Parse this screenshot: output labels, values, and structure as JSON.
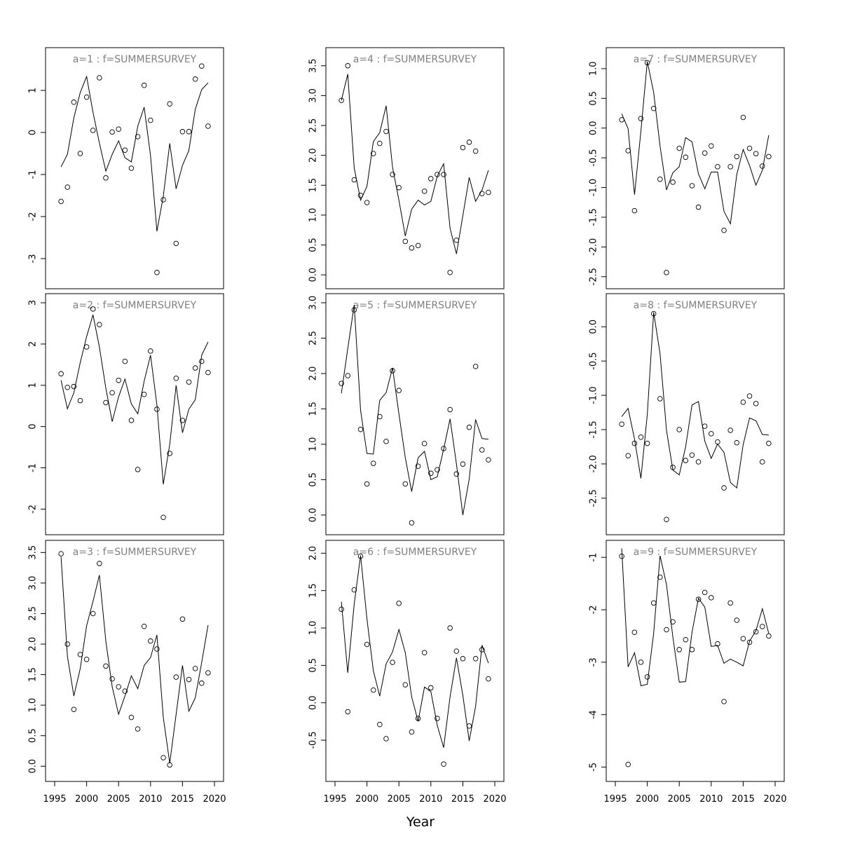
{
  "chart_data": {
    "xlabel": "Year",
    "years": [
      1996,
      1997,
      1998,
      1999,
      2000,
      2001,
      2002,
      2003,
      2004,
      2005,
      2006,
      2007,
      2008,
      2009,
      2010,
      2011,
      2012,
      2013,
      2014,
      2015,
      2016,
      2017,
      2018,
      2019
    ],
    "xlim": [
      1995,
      2020
    ],
    "xticks": [
      1995,
      2000,
      2005,
      2010,
      2015,
      2020
    ],
    "panels": [
      {
        "type": "scatter+line",
        "title": "a=1  :  f=SUMMERSURVEY",
        "ylim": [
          -3.5,
          1.8
        ],
        "yticks": [
          -3,
          -2,
          -1,
          0,
          1
        ],
        "observed": [
          -1.64,
          -1.3,
          0.72,
          -0.5,
          0.84,
          0.05,
          1.3,
          -1.08,
          0.01,
          0.08,
          -0.42,
          -0.85,
          -0.1,
          1.12,
          0.29,
          -3.33,
          -1.6,
          0.68,
          -2.64,
          0.02,
          0.02,
          1.27,
          1.58,
          0.15
        ],
        "fitted": [
          -0.82,
          -0.52,
          0.35,
          0.95,
          1.33,
          0.48,
          -0.25,
          -0.92,
          -0.52,
          -0.2,
          -0.6,
          -0.7,
          0.15,
          0.6,
          -0.55,
          -2.35,
          -1.52,
          -0.26,
          -1.34,
          -0.78,
          -0.43,
          0.55,
          1.02,
          1.18
        ]
      },
      {
        "type": "scatter+line",
        "title": "a=2  :  f=SUMMERSURVEY",
        "ylim": [
          -2.4,
          3.0
        ],
        "yticks": [
          -2,
          -1,
          0,
          1,
          2,
          3
        ],
        "observed": [
          1.28,
          0.95,
          0.97,
          0.63,
          1.93,
          2.85,
          2.47,
          0.58,
          0.82,
          1.12,
          1.58,
          0.15,
          -1.04,
          0.78,
          1.83,
          0.42,
          -2.2,
          -0.65,
          1.17,
          0.15,
          1.08,
          1.42,
          1.58,
          1.31
        ],
        "fitted": [
          1.12,
          0.43,
          0.82,
          1.55,
          2.18,
          2.71,
          1.93,
          0.93,
          0.12,
          0.72,
          1.15,
          0.55,
          0.31,
          1.1,
          1.73,
          0.52,
          -1.4,
          -0.43,
          1.0,
          -0.15,
          0.42,
          0.65,
          1.73,
          2.05
        ]
      },
      {
        "type": "scatter+line",
        "title": "a=3  :  f=SUMMERSURVEY",
        "ylim": [
          -0.1,
          3.55
        ],
        "yticks": [
          0.0,
          0.5,
          1.0,
          1.5,
          2.0,
          2.5,
          3.0,
          3.5
        ],
        "observed": [
          3.48,
          2.0,
          0.93,
          1.83,
          1.75,
          2.5,
          3.32,
          1.64,
          1.43,
          1.3,
          1.23,
          0.8,
          0.61,
          2.29,
          2.05,
          1.92,
          0.14,
          0.02,
          1.46,
          2.41,
          1.42,
          1.6,
          1.36,
          1.53
        ],
        "fitted": [
          3.43,
          1.8,
          1.15,
          1.6,
          2.3,
          2.7,
          3.13,
          2.05,
          1.3,
          0.85,
          1.15,
          1.48,
          1.27,
          1.65,
          1.78,
          2.15,
          0.8,
          0.05,
          0.85,
          1.65,
          0.9,
          1.12,
          1.7,
          2.31
        ]
      },
      {
        "type": "scatter+line",
        "title": "a=4  :  f=SUMMERSURVEY",
        "ylim": [
          -0.08,
          3.65
        ],
        "yticks": [
          0.0,
          0.5,
          1.0,
          1.5,
          2.0,
          2.5,
          3.0,
          3.5
        ],
        "observed": [
          2.92,
          3.5,
          1.59,
          1.33,
          1.21,
          2.03,
          2.2,
          2.4,
          1.68,
          1.46,
          0.56,
          0.45,
          0.49,
          1.4,
          1.61,
          1.68,
          1.68,
          0.04,
          0.58,
          2.13,
          2.22,
          2.07,
          1.36,
          1.38
        ],
        "fitted": [
          2.92,
          3.36,
          1.79,
          1.25,
          1.48,
          2.23,
          2.38,
          2.83,
          1.8,
          1.25,
          0.65,
          1.1,
          1.25,
          1.17,
          1.23,
          1.65,
          1.86,
          0.78,
          0.35,
          0.99,
          1.63,
          1.23,
          1.42,
          1.75
        ]
      },
      {
        "type": "scatter+line",
        "title": "a=5  :  f=SUMMERSURVEY",
        "ylim": [
          -0.15,
          3.0
        ],
        "yticks": [
          0.0,
          0.5,
          1.0,
          1.5,
          2.0,
          2.5,
          3.0
        ],
        "observed": [
          1.86,
          1.97,
          2.9,
          1.21,
          0.44,
          0.73,
          1.39,
          1.04,
          2.04,
          1.76,
          0.44,
          -0.11,
          0.69,
          1.01,
          0.59,
          0.64,
          0.94,
          1.49,
          0.58,
          0.72,
          1.24,
          2.1,
          0.92,
          0.78
        ],
        "fitted": [
          1.72,
          2.35,
          2.97,
          1.48,
          0.87,
          0.86,
          1.62,
          1.73,
          2.08,
          1.43,
          0.81,
          0.33,
          0.81,
          0.9,
          0.5,
          0.54,
          0.93,
          1.36,
          0.72,
          0.0,
          0.51,
          1.35,
          1.08,
          1.07
        ]
      },
      {
        "type": "scatter+line",
        "title": "a=6  :  f=SUMMERSURVEY",
        "ylim": [
          -0.93,
          2.05
        ],
        "yticks": [
          -0.5,
          0.0,
          0.5,
          1.0,
          1.5,
          2.0
        ],
        "observed": [
          1.25,
          -0.12,
          1.51,
          1.96,
          0.78,
          0.17,
          -0.29,
          -0.48,
          0.54,
          1.33,
          0.24,
          -0.39,
          -0.21,
          0.67,
          0.2,
          -0.21,
          -0.82,
          1.0,
          0.69,
          0.59,
          -0.31,
          0.59,
          0.71,
          0.32
        ],
        "fitted": [
          1.35,
          0.4,
          1.32,
          1.97,
          1.12,
          0.43,
          0.09,
          0.52,
          0.68,
          0.98,
          0.67,
          0.08,
          -0.25,
          0.21,
          0.15,
          -0.3,
          -0.6,
          0.08,
          0.6,
          0.1,
          -0.51,
          -0.05,
          0.77,
          0.53
        ]
      },
      {
        "type": "scatter+line",
        "title": "a=7  :  f=SUMMERSURVEY",
        "ylim": [
          -2.55,
          1.2
        ],
        "yticks": [
          -2.5,
          -2.0,
          -1.5,
          -1.0,
          -0.5,
          0.0,
          0.5,
          1.0
        ],
        "observed": [
          0.14,
          -0.38,
          -1.39,
          0.16,
          1.1,
          0.33,
          -0.86,
          -2.43,
          -0.91,
          -0.34,
          -0.49,
          -0.97,
          -1.33,
          -0.42,
          -0.3,
          -0.65,
          -1.72,
          -0.65,
          -0.48,
          0.18,
          -0.34,
          -0.43,
          -0.64,
          -0.48
        ],
        "fitted": [
          0.24,
          -0.01,
          -1.12,
          -0.05,
          1.12,
          0.6,
          -0.3,
          -1.04,
          -0.75,
          -0.65,
          -0.16,
          -0.23,
          -0.77,
          -1.02,
          -0.74,
          -0.74,
          -1.4,
          -1.61,
          -0.78,
          -0.36,
          -0.63,
          -0.96,
          -0.71,
          -0.12
        ]
      },
      {
        "type": "scatter+line",
        "title": "a=8  :  f=SUMMERSURVEY",
        "ylim": [
          -2.9,
          0.35
        ],
        "yticks": [
          -2.5,
          -2.0,
          -1.5,
          -1.0,
          -0.5,
          0.0
        ],
        "observed": [
          -1.42,
          -1.88,
          -1.7,
          -1.61,
          -1.7,
          0.19,
          -1.05,
          -2.81,
          -2.05,
          -1.5,
          -1.95,
          -1.87,
          -1.97,
          -1.45,
          -1.56,
          -1.68,
          -2.35,
          -1.51,
          -1.69,
          -1.1,
          -1.01,
          -1.12,
          -1.97,
          -1.7
        ],
        "fitted": [
          -1.31,
          -1.19,
          -1.64,
          -2.21,
          -1.28,
          0.21,
          -0.39,
          -1.51,
          -2.09,
          -2.16,
          -1.75,
          -1.14,
          -1.09,
          -1.67,
          -1.92,
          -1.71,
          -1.83,
          -2.27,
          -2.35,
          -1.72,
          -1.33,
          -1.37,
          -1.57,
          -1.58
        ]
      },
      {
        "type": "scatter+line",
        "title": "a=9  :  f=SUMMERSURVEY",
        "ylim": [
          -5.1,
          -0.85
        ],
        "yticks": [
          -5,
          -4,
          -3,
          -2,
          -1
        ],
        "observed": [
          -0.98,
          -4.95,
          -2.43,
          -3.0,
          -3.28,
          -1.87,
          -1.38,
          -2.38,
          -2.23,
          -2.76,
          -2.57,
          -2.76,
          -1.8,
          -1.67,
          -1.77,
          -2.65,
          -3.75,
          -1.87,
          -2.2,
          -2.55,
          -2.62,
          -2.42,
          -2.32,
          -2.5
        ],
        "fitted": [
          -0.83,
          -3.09,
          -2.82,
          -3.45,
          -3.42,
          -2.45,
          -0.97,
          -1.52,
          -2.52,
          -3.38,
          -3.37,
          -2.43,
          -1.78,
          -1.95,
          -2.7,
          -2.68,
          -3.02,
          -2.94,
          -3.0,
          -3.07,
          -2.6,
          -2.4,
          -1.98,
          -2.45
        ]
      }
    ]
  }
}
